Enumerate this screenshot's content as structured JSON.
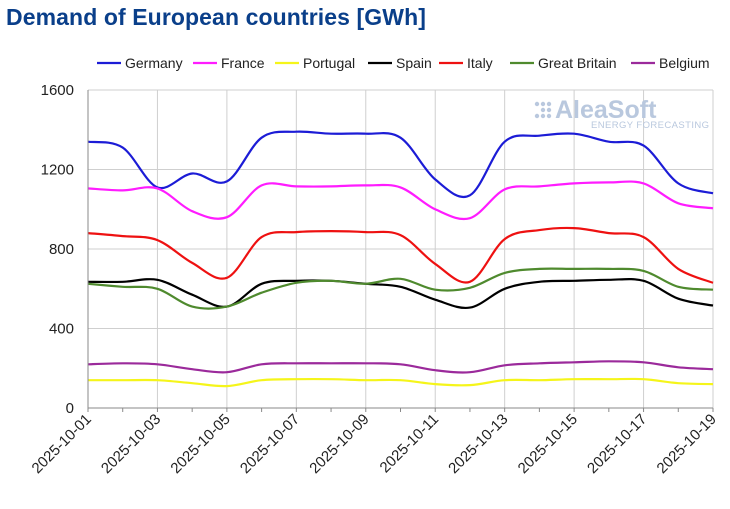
{
  "chart_data": {
    "type": "line",
    "title": "Demand of European countries [GWh]",
    "xlabel": "",
    "ylabel": "",
    "ylim": [
      0,
      1600
    ],
    "yticks": [
      "0",
      "400",
      "800",
      "1200",
      "1600"
    ],
    "x": [
      "2025-10-01",
      "2025-10-02",
      "2025-10-03",
      "2025-10-04",
      "2025-10-05",
      "2025-10-06",
      "2025-10-07",
      "2025-10-08",
      "2025-10-09",
      "2025-10-10",
      "2025-10-11",
      "2025-10-12",
      "2025-10-13",
      "2025-10-14",
      "2025-10-15",
      "2025-10-16",
      "2025-10-17",
      "2025-10-18",
      "2025-10-19"
    ],
    "xtick_labels": [
      "2025-10-01",
      "2025-10-03",
      "2025-10-05",
      "2025-10-07",
      "2025-10-09",
      "2025-10-11",
      "2025-10-13",
      "2025-10-15",
      "2025-10-17",
      "2025-10-19"
    ],
    "grid": true,
    "legend_position": "top",
    "series": [
      {
        "name": "Germany",
        "color": "#1c1cd6",
        "values": [
          1340,
          1310,
          1110,
          1180,
          1140,
          1360,
          1390,
          1380,
          1380,
          1360,
          1150,
          1070,
          1340,
          1370,
          1380,
          1340,
          1320,
          1130,
          1080
        ]
      },
      {
        "name": "France",
        "color": "#ff1cff",
        "values": [
          1105,
          1095,
          1105,
          990,
          960,
          1120,
          1115,
          1115,
          1120,
          1110,
          1000,
          955,
          1100,
          1115,
          1130,
          1135,
          1130,
          1030,
          1005
        ]
      },
      {
        "name": "Portugal",
        "color": "#f5f51a",
        "values": [
          140,
          140,
          140,
          125,
          110,
          140,
          145,
          145,
          140,
          140,
          120,
          115,
          140,
          140,
          145,
          145,
          145,
          125,
          120
        ]
      },
      {
        "name": "Spain",
        "color": "#000000",
        "values": [
          635,
          635,
          645,
          570,
          510,
          625,
          640,
          640,
          625,
          610,
          545,
          505,
          600,
          635,
          640,
          645,
          640,
          550,
          515
        ]
      },
      {
        "name": "Italy",
        "color": "#ee1111",
        "values": [
          880,
          865,
          845,
          730,
          655,
          860,
          885,
          890,
          885,
          870,
          725,
          635,
          850,
          895,
          905,
          880,
          860,
          700,
          630
        ]
      },
      {
        "name": "Great Britain",
        "color": "#4f8a2e",
        "values": [
          625,
          610,
          600,
          510,
          510,
          580,
          630,
          640,
          625,
          650,
          595,
          605,
          680,
          700,
          700,
          700,
          690,
          610,
          595
        ]
      },
      {
        "name": "Belgium",
        "color": "#9b2a9b",
        "values": [
          220,
          225,
          220,
          195,
          180,
          220,
          225,
          225,
          225,
          220,
          190,
          180,
          215,
          225,
          230,
          235,
          230,
          205,
          195
        ]
      }
    ]
  },
  "watermark": {
    "brand": "AleaSoft",
    "tagline": "ENERGY FORECASTING"
  }
}
